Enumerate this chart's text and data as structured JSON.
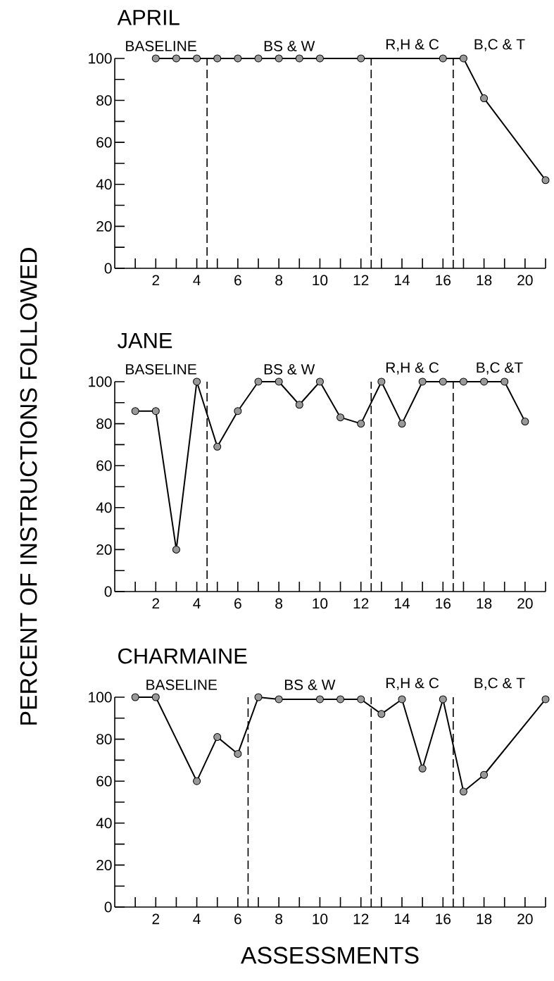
{
  "chart_data": [
    {
      "type": "line",
      "title": "APRIL",
      "color": "#000000",
      "marker": "circle",
      "x": [
        2,
        3,
        4,
        5,
        6,
        7,
        8,
        9,
        10,
        12,
        16,
        17,
        18,
        21
      ],
      "values": [
        100,
        100,
        100,
        100,
        100,
        100,
        100,
        100,
        100,
        100,
        100,
        100,
        81,
        42
      ],
      "xlim": [
        0,
        21
      ],
      "ylim": [
        0,
        100
      ],
      "xticks": [
        {
          "value": 1,
          "label": null
        },
        2,
        {
          "value": 3,
          "label": null
        },
        4,
        {
          "value": 5,
          "label": null
        },
        6,
        {
          "value": 7,
          "label": null
        },
        8,
        {
          "value": 9,
          "label": null
        },
        10,
        {
          "value": 11,
          "label": null
        },
        12,
        {
          "value": 13,
          "label": null
        },
        14,
        {
          "value": 15,
          "label": null
        },
        16,
        {
          "value": 17,
          "label": null
        },
        18,
        {
          "value": 19,
          "label": null
        },
        20,
        {
          "value": 21,
          "label": null
        }
      ],
      "yticks": [
        0,
        {
          "value": 10,
          "label": null
        },
        20,
        {
          "value": 30,
          "label": null
        },
        40,
        {
          "value": 50,
          "label": null
        },
        60,
        {
          "value": 70,
          "label": null
        },
        80,
        {
          "value": 90,
          "label": null
        },
        100
      ],
      "ref_lines": [
        {
          "axis": "x",
          "value": 4.5,
          "line_style": "dashed"
        },
        {
          "axis": "x",
          "value": 12.5,
          "line_style": "dashed"
        },
        {
          "axis": "x",
          "value": 16.5,
          "line_style": "dashed"
        }
      ],
      "annotations": [
        "BASELINE",
        "BS & W",
        "R,H & C",
        "B,C & T"
      ]
    },
    {
      "type": "line",
      "title": "JANE",
      "ylabel": "PERCENT OF INSTRUCTIONS FOLLOWED",
      "color": "#000000",
      "marker": "circle",
      "x": [
        1,
        2,
        3,
        4,
        5,
        6,
        7,
        8,
        9,
        10,
        11,
        12,
        13,
        14,
        15,
        16,
        17,
        18,
        19,
        20
      ],
      "values": [
        86,
        86,
        20,
        100,
        69,
        86,
        100,
        100,
        89,
        100,
        83,
        80,
        100,
        80,
        100,
        100,
        100,
        100,
        100,
        81
      ],
      "xlim": [
        0,
        21
      ],
      "ylim": [
        0,
        100
      ],
      "xticks": [
        {
          "value": 1,
          "label": null
        },
        2,
        {
          "value": 3,
          "label": null
        },
        4,
        {
          "value": 5,
          "label": null
        },
        6,
        {
          "value": 7,
          "label": null
        },
        8,
        {
          "value": 9,
          "label": null
        },
        10,
        {
          "value": 11,
          "label": null
        },
        12,
        {
          "value": 13,
          "label": null
        },
        14,
        {
          "value": 15,
          "label": null
        },
        16,
        {
          "value": 17,
          "label": null
        },
        18,
        {
          "value": 19,
          "label": null
        },
        20,
        {
          "value": 21,
          "label": null
        }
      ],
      "yticks": [
        0,
        {
          "value": 10,
          "label": null
        },
        20,
        {
          "value": 30,
          "label": null
        },
        40,
        {
          "value": 50,
          "label": null
        },
        60,
        {
          "value": 70,
          "label": null
        },
        80,
        {
          "value": 90,
          "label": null
        },
        100
      ],
      "ref_lines": [
        {
          "axis": "x",
          "value": 4.5,
          "line_style": "dashed"
        },
        {
          "axis": "x",
          "value": 12.5,
          "line_style": "dashed"
        },
        {
          "axis": "x",
          "value": 16.5,
          "line_style": "dashed"
        }
      ],
      "annotations": [
        "BASELINE",
        "BS & W",
        "R,H & C",
        "B,C &T"
      ]
    },
    {
      "type": "line",
      "title": "CHARMAINE",
      "xlabel": "ASSESSMENTS",
      "color": "#000000",
      "marker": "circle",
      "x": [
        1,
        2,
        4,
        5,
        6,
        7,
        8,
        10,
        11,
        12,
        13,
        14,
        15,
        16,
        17,
        18,
        21
      ],
      "values": [
        100,
        100,
        60,
        81,
        73,
        100,
        99,
        99,
        99,
        99,
        92,
        99,
        66,
        99,
        55,
        63,
        99
      ],
      "xlim": [
        0,
        21
      ],
      "ylim": [
        0,
        100
      ],
      "xticks": [
        {
          "value": 1,
          "label": null
        },
        2,
        {
          "value": 3,
          "label": null
        },
        4,
        {
          "value": 5,
          "label": null
        },
        6,
        {
          "value": 7,
          "label": null
        },
        8,
        {
          "value": 9,
          "label": null
        },
        10,
        {
          "value": 11,
          "label": null
        },
        12,
        {
          "value": 13,
          "label": null
        },
        14,
        {
          "value": 15,
          "label": null
        },
        16,
        {
          "value": 17,
          "label": null
        },
        18,
        {
          "value": 19,
          "label": null
        },
        20,
        {
          "value": 21,
          "label": null
        }
      ],
      "yticks": [
        0,
        {
          "value": 10,
          "label": null
        },
        20,
        {
          "value": 30,
          "label": null
        },
        40,
        {
          "value": 50,
          "label": null
        },
        60,
        {
          "value": 70,
          "label": null
        },
        80,
        {
          "value": 90,
          "label": null
        },
        100
      ],
      "ref_lines": [
        {
          "axis": "x",
          "value": 6.5,
          "line_style": "dashed"
        },
        {
          "axis": "x",
          "value": 12.5,
          "line_style": "dashed"
        },
        {
          "axis": "x",
          "value": 16.5,
          "line_style": "dashed"
        }
      ],
      "annotations": [
        "BASELINE",
        "BS & W",
        "R,H & C",
        "B,C & T"
      ]
    }
  ]
}
